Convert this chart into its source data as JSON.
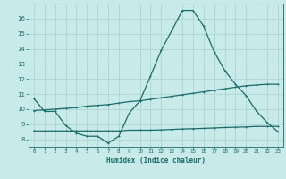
{
  "xlabel": "Humidex (Indice chaleur)",
  "bg_color": "#c8eae8",
  "grid_color": "#b0d8d5",
  "line_color": "#1a6b6b",
  "xlim": [
    -0.5,
    23.5
  ],
  "ylim": [
    7.5,
    17.0
  ],
  "xticks": [
    0,
    1,
    2,
    3,
    4,
    5,
    6,
    7,
    8,
    9,
    10,
    11,
    12,
    13,
    14,
    15,
    16,
    17,
    18,
    19,
    20,
    21,
    22,
    23
  ],
  "yticks": [
    8,
    9,
    10,
    11,
    12,
    13,
    14,
    15,
    16
  ],
  "line1_x": [
    0,
    1,
    2,
    3,
    4,
    5,
    6,
    7,
    8,
    9,
    10,
    11,
    12,
    13,
    14,
    15,
    16,
    17,
    18,
    19,
    20,
    21,
    22,
    23
  ],
  "line1_y": [
    10.7,
    9.85,
    9.85,
    8.9,
    8.4,
    8.2,
    8.2,
    7.75,
    8.2,
    9.75,
    10.55,
    12.2,
    13.9,
    15.2,
    16.55,
    16.55,
    15.5,
    13.8,
    12.55,
    11.65,
    10.9,
    9.85,
    9.1,
    8.5
  ],
  "line2_x": [
    0,
    1,
    2,
    3,
    4,
    5,
    6,
    7,
    8,
    9,
    10,
    11,
    12,
    13,
    14,
    15,
    16,
    17,
    18,
    19,
    20,
    21,
    22,
    23
  ],
  "line2_y": [
    9.9,
    9.95,
    10.0,
    10.05,
    10.1,
    10.2,
    10.25,
    10.3,
    10.4,
    10.5,
    10.55,
    10.65,
    10.75,
    10.85,
    10.95,
    11.05,
    11.15,
    11.25,
    11.35,
    11.45,
    11.55,
    11.6,
    11.65,
    11.65
  ],
  "line3_x": [
    0,
    1,
    2,
    3,
    4,
    5,
    6,
    7,
    8,
    9,
    10,
    11,
    12,
    13,
    14,
    15,
    16,
    17,
    18,
    19,
    20,
    21,
    22,
    23
  ],
  "line3_y": [
    8.55,
    8.55,
    8.55,
    8.55,
    8.55,
    8.55,
    8.55,
    8.55,
    8.55,
    8.6,
    8.6,
    8.6,
    8.62,
    8.65,
    8.68,
    8.7,
    8.72,
    8.75,
    8.78,
    8.8,
    8.82,
    8.85,
    8.85,
    8.85
  ]
}
